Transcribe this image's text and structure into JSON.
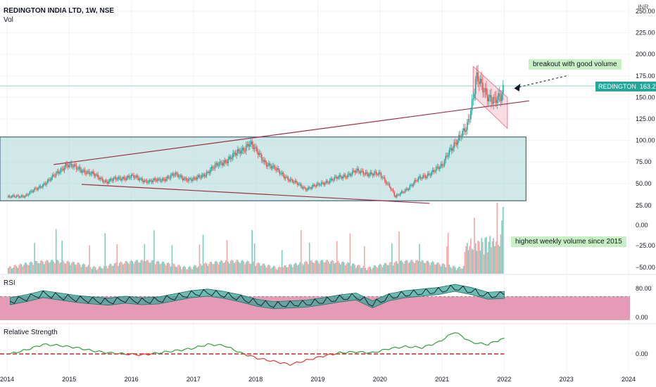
{
  "header": {
    "title": "REDINGTON INDIA LTD, 1W, NSE",
    "vol_label": "Vol",
    "currency": "INR"
  },
  "chart_data": [
    {
      "type": "candlestick",
      "name": "price-panel",
      "ylim": [
        0,
        250
      ],
      "y_ticks": [
        "50.00",
        "75.00",
        "100.00",
        "125.00",
        "150.00",
        "175.00",
        "200.00",
        "225.00",
        "250.00"
      ],
      "x_ticks": [
        "2014",
        "2015",
        "2016",
        "2017",
        "2018",
        "2019",
        "2020",
        "2021",
        "2022",
        "2023",
        "2024"
      ],
      "x_range": [
        2014.0,
        2024.0
      ],
      "last_price": {
        "symbol": "REDINGTON",
        "value": "163.25"
      },
      "series_close": [
        [
          2014.0,
          34
        ],
        [
          2014.3,
          36
        ],
        [
          2014.5,
          45
        ],
        [
          2014.7,
          55
        ],
        [
          2014.95,
          72
        ],
        [
          2015.2,
          66
        ],
        [
          2015.45,
          58
        ],
        [
          2015.6,
          52
        ],
        [
          2015.8,
          56
        ],
        [
          2016.0,
          58
        ],
        [
          2016.3,
          52
        ],
        [
          2016.5,
          55
        ],
        [
          2016.7,
          60
        ],
        [
          2016.9,
          55
        ],
        [
          2017.0,
          54
        ],
        [
          2017.2,
          62
        ],
        [
          2017.4,
          72
        ],
        [
          2017.6,
          80
        ],
        [
          2017.8,
          90
        ],
        [
          2017.9,
          98
        ],
        [
          2018.0,
          88
        ],
        [
          2018.15,
          75
        ],
        [
          2018.4,
          62
        ],
        [
          2018.6,
          52
        ],
        [
          2018.8,
          44
        ],
        [
          2019.0,
          48
        ],
        [
          2019.2,
          54
        ],
        [
          2019.4,
          58
        ],
        [
          2019.6,
          64
        ],
        [
          2019.8,
          62
        ],
        [
          2020.0,
          60
        ],
        [
          2020.15,
          48
        ],
        [
          2020.25,
          34
        ],
        [
          2020.4,
          42
        ],
        [
          2020.6,
          54
        ],
        [
          2020.8,
          62
        ],
        [
          2021.0,
          70
        ],
        [
          2021.1,
          88
        ],
        [
          2021.25,
          98
        ],
        [
          2021.4,
          118
        ],
        [
          2021.5,
          150
        ],
        [
          2021.55,
          172
        ],
        [
          2021.65,
          160
        ],
        [
          2021.75,
          152
        ],
        [
          2021.85,
          146
        ],
        [
          2021.95,
          148
        ],
        [
          2022.0,
          163.25
        ]
      ],
      "annotations": [
        "breakout with good volume"
      ]
    },
    {
      "type": "bar",
      "name": "volume-panel",
      "y_ticks": [
        "25.00",
        "0.00",
        "−25.00",
        "−50.00"
      ],
      "annotations": [
        "highest weekly volume since 2015"
      ]
    },
    {
      "type": "line",
      "name": "rsi-panel",
      "title": "RSI",
      "ylim": [
        0,
        100
      ],
      "y_ticks": [
        "80.00",
        "0.00"
      ],
      "series": [
        {
          "name": "",
          "values": [
            48,
            56,
            66,
            60,
            54,
            50,
            47,
            52,
            48,
            50,
            58,
            66,
            70,
            64,
            55,
            44,
            38,
            40,
            42,
            48,
            55,
            60,
            40,
            58,
            66,
            70,
            74,
            82,
            74,
            62,
            64
          ]
        }
      ]
    },
    {
      "type": "line",
      "name": "relative-strength-panel",
      "title": "Relative Strength",
      "y_ticks": [
        "0.00"
      ],
      "series": [
        {
          "name": "",
          "values": [
            0,
            0.2,
            0.45,
            0.4,
            0.3,
            0.15,
            0.05,
            0.0,
            -0.05,
            0.05,
            0.15,
            0.25,
            0.45,
            0.4,
            0.05,
            -0.2,
            -0.35,
            -0.5,
            -0.3,
            -0.1,
            0.05,
            0.1,
            0.05,
            0.25,
            0.35,
            0.3,
            0.55,
            1.05,
            0.55,
            0.45,
            0.75
          ]
        }
      ]
    }
  ]
}
